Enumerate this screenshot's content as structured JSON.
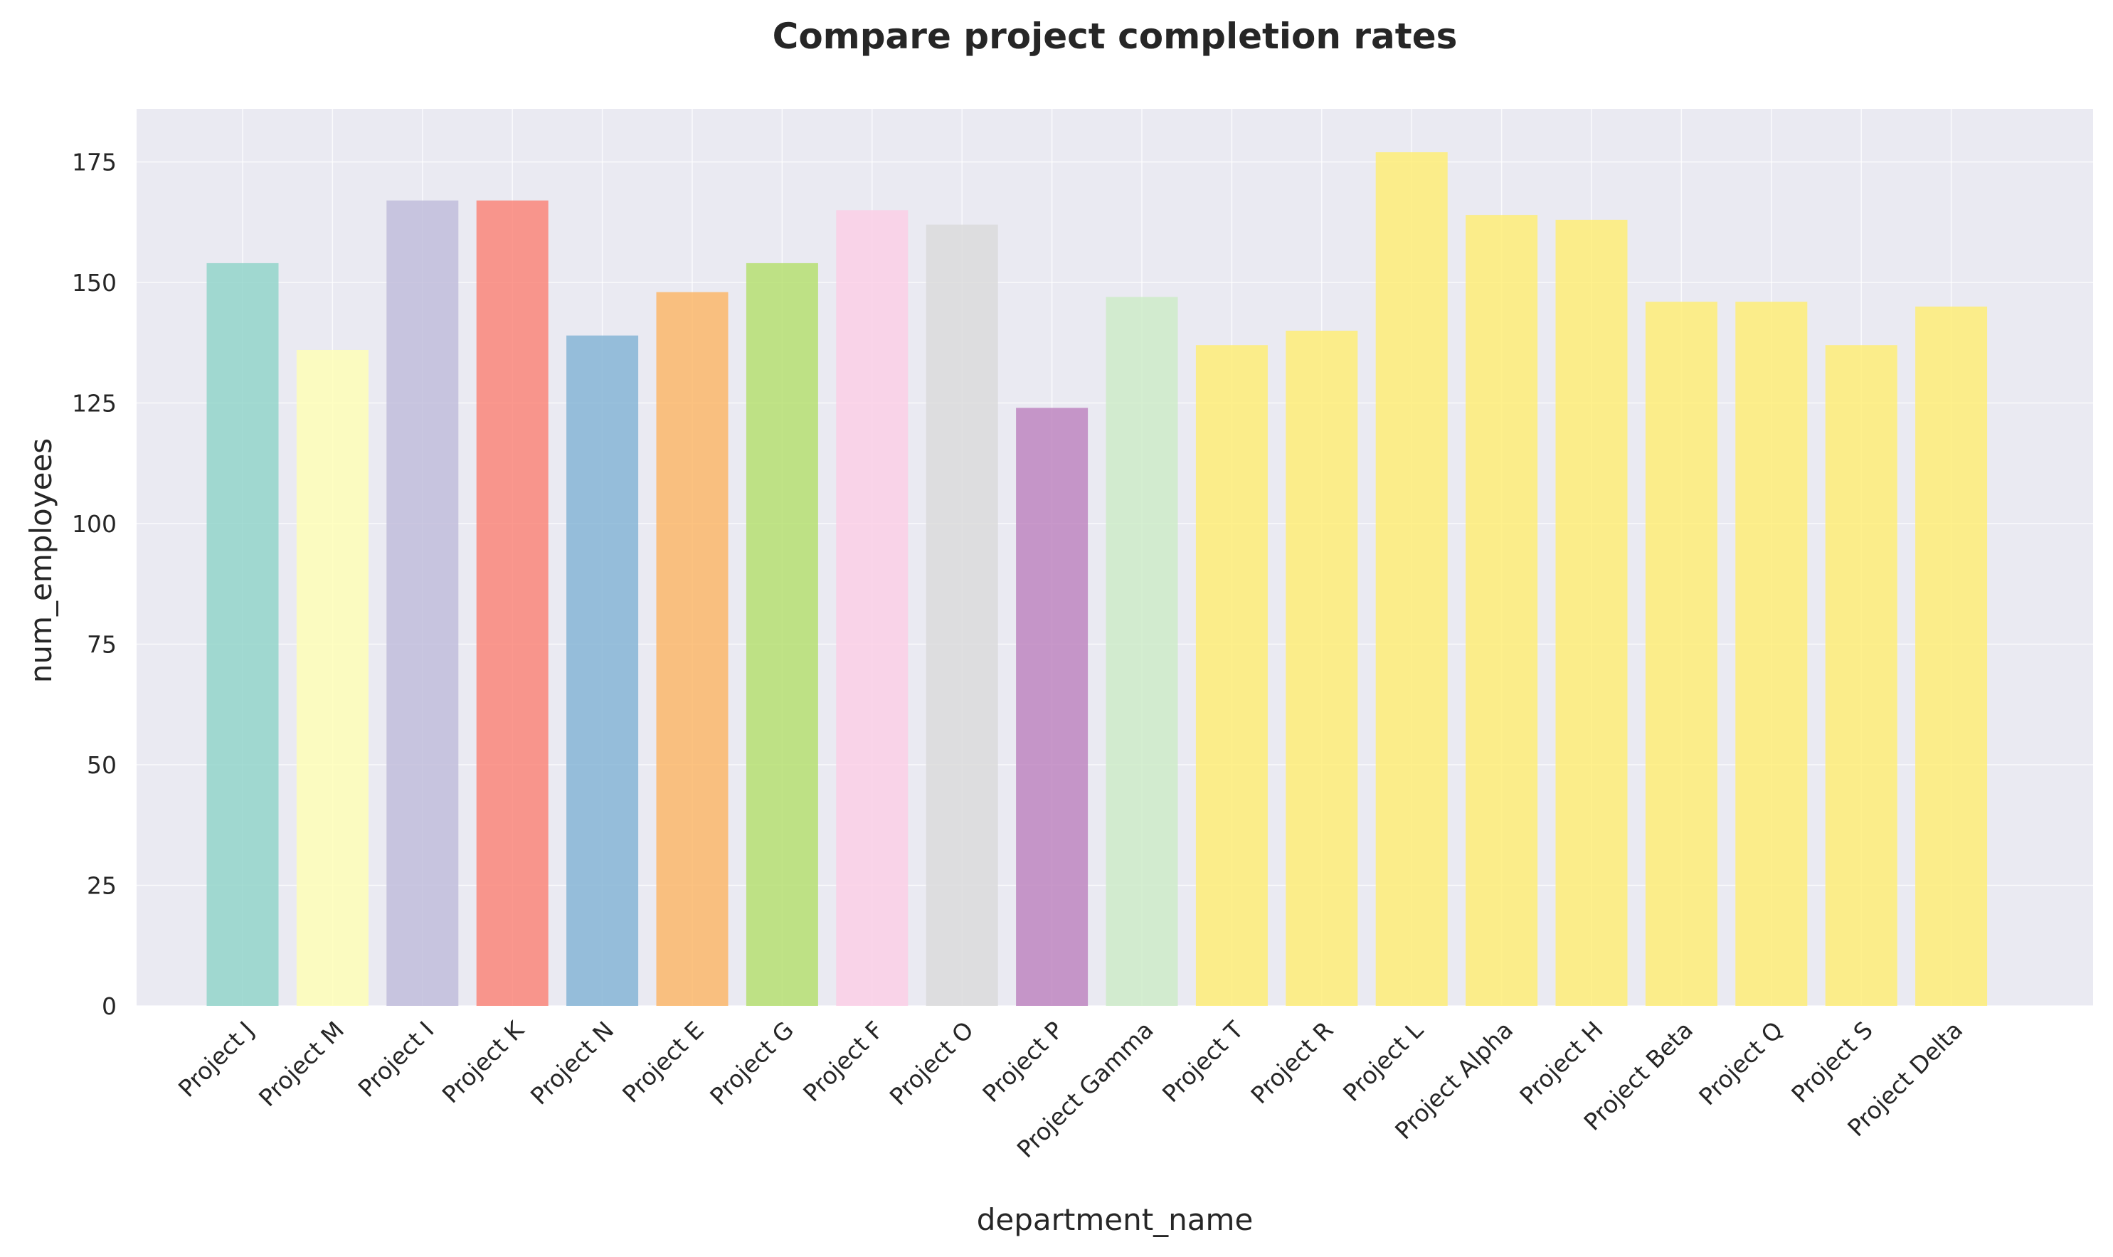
{
  "chart_data": {
    "type": "bar",
    "title": "Compare project completion rates",
    "xlabel": "department_name",
    "ylabel": "num_employees",
    "ylim": [
      0,
      186
    ],
    "yticks": [
      0,
      25,
      50,
      75,
      100,
      125,
      150,
      175
    ],
    "grid": true,
    "legend": "none",
    "categories": [
      "Project J",
      "Project M",
      "Project I",
      "Project K",
      "Project N",
      "Project E",
      "Project G",
      "Project F",
      "Project O",
      "Project P",
      "Project Gamma",
      "Project T",
      "Project R",
      "Project L",
      "Project Alpha",
      "Project H",
      "Project Beta",
      "Project Q",
      "Project S",
      "Project Delta"
    ],
    "values": [
      154,
      136,
      167,
      167,
      139,
      148,
      154,
      165,
      162,
      124,
      147,
      137,
      140,
      177,
      164,
      163,
      146,
      146,
      137,
      145
    ],
    "colors": [
      "#8dd3c7",
      "#ffffb3",
      "#bebada",
      "#fb8072",
      "#80b1d3",
      "#fdb462",
      "#b3de69",
      "#fccde5",
      "#d9d9d9",
      "#bc80bd",
      "#ccebc5",
      "#ffed6f",
      "#ffed6f",
      "#ffed6f",
      "#ffed6f",
      "#ffed6f",
      "#ffed6f",
      "#ffed6f",
      "#ffed6f",
      "#ffed6f"
    ],
    "plot_background": "#eaeaf2"
  }
}
